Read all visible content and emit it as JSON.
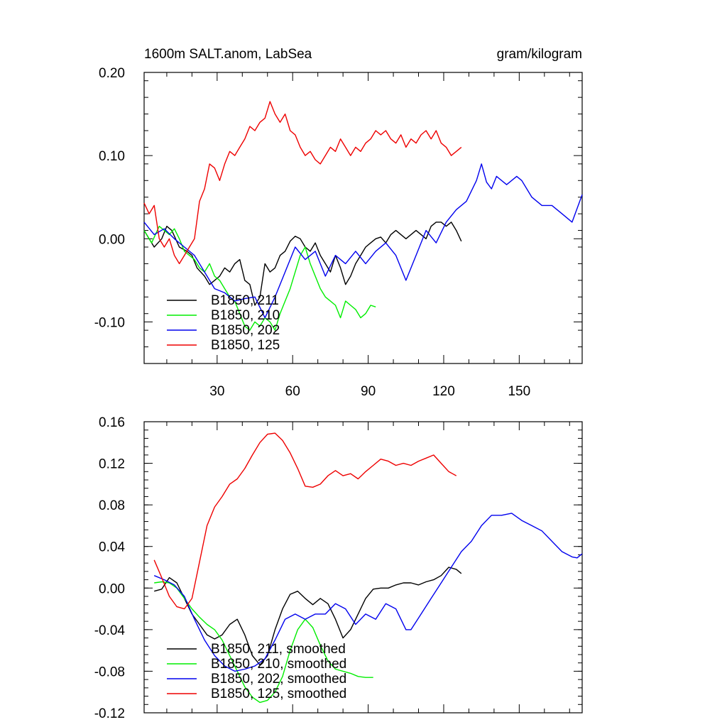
{
  "figure": {
    "title_left": "1600m SALT.anom, LabSea",
    "title_right": "gram/kilogram"
  },
  "chart_data": [
    {
      "type": "line",
      "title": "1600m SALT.anom, LabSea",
      "units": "gram/kilogram",
      "xlim": [
        1,
        175
      ],
      "ylim": [
        -0.15,
        0.2
      ],
      "xticks": [
        30,
        60,
        90,
        120,
        150
      ],
      "xtick_labels": [
        "30",
        "60",
        "90",
        "120",
        "150"
      ],
      "yticks": [
        -0.1,
        0.0,
        0.1,
        0.2
      ],
      "ytick_labels": [
        "-0.10",
        "0.00",
        "0.10",
        "0.20"
      ],
      "legend_position": "bottom-left",
      "series": [
        {
          "name": "B1850, 211",
          "color": "#000000",
          "x": [
            1,
            5,
            8,
            10,
            12,
            15,
            18,
            20,
            22,
            25,
            27,
            29,
            31,
            33,
            35,
            37,
            39,
            41,
            43,
            45,
            47,
            49,
            51,
            53,
            55,
            57,
            59,
            61,
            63,
            65,
            67,
            69,
            71,
            73,
            75,
            77,
            79,
            81,
            83,
            85,
            87,
            89,
            91,
            93,
            95,
            97,
            99,
            101,
            103,
            105,
            107,
            109,
            111,
            113,
            115,
            117,
            119,
            121,
            123,
            125,
            127
          ],
          "y": [
            0.01,
            -0.01,
            0.0,
            0.015,
            0.01,
            -0.01,
            -0.015,
            -0.02,
            -0.035,
            -0.045,
            -0.055,
            -0.05,
            -0.045,
            -0.035,
            -0.04,
            -0.03,
            -0.025,
            -0.05,
            -0.055,
            -0.08,
            -0.07,
            -0.03,
            -0.04,
            -0.035,
            -0.02,
            -0.015,
            -0.003,
            0.003,
            0.0,
            -0.01,
            -0.015,
            -0.005,
            -0.02,
            -0.03,
            -0.04,
            -0.02,
            -0.035,
            -0.055,
            -0.045,
            -0.03,
            -0.02,
            -0.01,
            -0.005,
            0.0,
            0.002,
            -0.005,
            0.005,
            0.01,
            0.005,
            0.0,
            0.005,
            0.01,
            0.005,
            0.0,
            0.015,
            0.02,
            0.02,
            0.015,
            0.02,
            0.01,
            -0.003
          ]
        },
        {
          "name": "B1850, 210",
          "color": "#00ee00",
          "x": [
            1,
            4,
            7,
            9,
            11,
            13,
            15,
            17,
            19,
            21,
            23,
            25,
            27,
            29,
            31,
            33,
            35,
            37,
            39,
            41,
            43,
            45,
            47,
            49,
            51,
            53,
            55,
            57,
            59,
            61,
            63,
            65,
            67,
            69,
            71,
            73,
            75,
            77,
            79,
            81,
            83,
            85,
            87,
            89,
            91,
            93
          ],
          "y": [
            0.01,
            -0.005,
            0.015,
            0.01,
            0.005,
            0.012,
            0.0,
            -0.015,
            -0.02,
            -0.025,
            -0.035,
            -0.04,
            -0.03,
            -0.045,
            -0.05,
            -0.06,
            -0.07,
            -0.075,
            -0.09,
            -0.105,
            -0.11,
            -0.1,
            -0.105,
            -0.095,
            -0.1,
            -0.11,
            -0.09,
            -0.075,
            -0.06,
            -0.04,
            -0.02,
            -0.01,
            -0.03,
            -0.045,
            -0.06,
            -0.07,
            -0.075,
            -0.08,
            -0.095,
            -0.075,
            -0.08,
            -0.085,
            -0.095,
            -0.09,
            -0.08,
            -0.082
          ]
        },
        {
          "name": "B1850, 202",
          "color": "#0000ee",
          "x": [
            1,
            5,
            9,
            13,
            17,
            21,
            25,
            29,
            33,
            37,
            41,
            45,
            49,
            53,
            57,
            61,
            65,
            69,
            73,
            77,
            81,
            85,
            89,
            93,
            97,
            101,
            105,
            109,
            113,
            117,
            121,
            125,
            129,
            133,
            135,
            137,
            139,
            141,
            145,
            149,
            151,
            155,
            159,
            163,
            167,
            171,
            175
          ],
          "y": [
            0.02,
            0.005,
            0.012,
            0.0,
            -0.01,
            -0.02,
            -0.04,
            -0.06,
            -0.065,
            -0.075,
            -0.072,
            -0.07,
            -0.095,
            -0.07,
            -0.04,
            -0.01,
            -0.025,
            -0.015,
            -0.045,
            -0.02,
            -0.03,
            -0.015,
            -0.03,
            -0.015,
            -0.005,
            -0.02,
            -0.05,
            -0.02,
            0.01,
            -0.005,
            0.02,
            0.035,
            0.045,
            0.07,
            0.09,
            0.068,
            0.06,
            0.075,
            0.065,
            0.075,
            0.07,
            0.05,
            0.04,
            0.04,
            0.03,
            0.02,
            0.053
          ]
        },
        {
          "name": "B1850, 125",
          "color": "#ee0000",
          "x": [
            1,
            3,
            5,
            7,
            9,
            11,
            13,
            15,
            17,
            19,
            21,
            23,
            25,
            27,
            29,
            31,
            33,
            35,
            37,
            39,
            41,
            43,
            45,
            47,
            49,
            51,
            53,
            55,
            57,
            59,
            61,
            63,
            65,
            67,
            69,
            71,
            73,
            75,
            77,
            79,
            81,
            83,
            85,
            87,
            89,
            91,
            93,
            95,
            97,
            99,
            101,
            103,
            105,
            107,
            109,
            111,
            113,
            115,
            117,
            119,
            121,
            123,
            125,
            127
          ],
          "y": [
            0.043,
            0.03,
            0.04,
            0.0,
            -0.01,
            0.0,
            -0.02,
            -0.03,
            -0.02,
            -0.01,
            0.0,
            0.045,
            0.06,
            0.09,
            0.085,
            0.07,
            0.09,
            0.105,
            0.1,
            0.11,
            0.12,
            0.135,
            0.13,
            0.14,
            0.145,
            0.165,
            0.15,
            0.14,
            0.15,
            0.13,
            0.125,
            0.11,
            0.1,
            0.105,
            0.095,
            0.09,
            0.1,
            0.11,
            0.105,
            0.12,
            0.11,
            0.1,
            0.11,
            0.105,
            0.115,
            0.12,
            0.13,
            0.125,
            0.13,
            0.12,
            0.115,
            0.125,
            0.11,
            0.12,
            0.115,
            0.125,
            0.13,
            0.12,
            0.13,
            0.115,
            0.11,
            0.1,
            0.105,
            0.11
          ]
        }
      ]
    },
    {
      "type": "line",
      "title": "",
      "xlim": [
        1,
        175
      ],
      "ylim": [
        -0.12,
        0.16
      ],
      "xticks": [
        30,
        60,
        90,
        120,
        150
      ],
      "xtick_labels": [
        "",
        "",
        "",
        "",
        ""
      ],
      "yticks": [
        -0.12,
        -0.08,
        -0.04,
        0.0,
        0.04,
        0.08,
        0.12,
        0.16
      ],
      "ytick_labels": [
        "-0.12",
        "-0.08",
        "-0.04",
        "0.00",
        "0.04",
        "0.08",
        "0.12",
        "0.16"
      ],
      "legend_position": "bottom-left",
      "series": [
        {
          "name": "B1850, 211, smoothed",
          "color": "#000000",
          "x": [
            5,
            8,
            11,
            14,
            17,
            20,
            23,
            26,
            29,
            32,
            35,
            38,
            41,
            44,
            47,
            50,
            53,
            56,
            59,
            62,
            65,
            68,
            71,
            74,
            77,
            80,
            83,
            86,
            89,
            92,
            95,
            98,
            101,
            104,
            107,
            110,
            113,
            116,
            119,
            122,
            125,
            127
          ],
          "y": [
            -0.003,
            -0.001,
            0.01,
            0.005,
            -0.01,
            -0.025,
            -0.035,
            -0.045,
            -0.049,
            -0.045,
            -0.035,
            -0.03,
            -0.045,
            -0.065,
            -0.074,
            -0.065,
            -0.04,
            -0.02,
            -0.006,
            -0.003,
            -0.01,
            -0.016,
            -0.01,
            -0.015,
            -0.03,
            -0.048,
            -0.04,
            -0.025,
            -0.01,
            -0.001,
            0.0,
            0.0,
            0.003,
            0.005,
            0.005,
            0.003,
            0.006,
            0.008,
            0.012,
            0.02,
            0.018,
            0.014
          ]
        },
        {
          "name": "B1850, 210, smoothed",
          "color": "#00ee00",
          "x": [
            5,
            8,
            11,
            14,
            17,
            20,
            23,
            26,
            29,
            32,
            35,
            38,
            41,
            44,
            47,
            50,
            53,
            56,
            59,
            62,
            65,
            68,
            71,
            74,
            77,
            80,
            83,
            86,
            89,
            92
          ],
          "y": [
            0.005,
            0.006,
            0.005,
            0.0,
            -0.01,
            -0.02,
            -0.028,
            -0.035,
            -0.04,
            -0.05,
            -0.065,
            -0.08,
            -0.095,
            -0.105,
            -0.11,
            -0.108,
            -0.1,
            -0.085,
            -0.06,
            -0.04,
            -0.03,
            -0.038,
            -0.055,
            -0.07,
            -0.078,
            -0.08,
            -0.082,
            -0.085,
            -0.086,
            -0.086
          ]
        },
        {
          "name": "B1850, 202, smoothed",
          "color": "#0000ee",
          "x": [
            5,
            9,
            13,
            17,
            21,
            25,
            29,
            33,
            37,
            41,
            45,
            49,
            53,
            57,
            61,
            65,
            69,
            73,
            77,
            81,
            85,
            89,
            93,
            97,
            101,
            105,
            107,
            111,
            115,
            119,
            123,
            127,
            131,
            135,
            139,
            143,
            147,
            151,
            155,
            159,
            163,
            167,
            171,
            173,
            175
          ],
          "y": [
            0.012,
            0.008,
            0.003,
            -0.008,
            -0.03,
            -0.05,
            -0.065,
            -0.075,
            -0.08,
            -0.078,
            -0.075,
            -0.068,
            -0.05,
            -0.03,
            -0.025,
            -0.03,
            -0.025,
            -0.025,
            -0.015,
            -0.02,
            -0.035,
            -0.025,
            -0.03,
            -0.015,
            -0.02,
            -0.04,
            -0.04,
            -0.025,
            -0.01,
            0.005,
            0.02,
            0.035,
            0.045,
            0.06,
            0.07,
            0.07,
            0.072,
            0.065,
            0.06,
            0.055,
            0.045,
            0.035,
            0.03,
            0.029,
            0.033
          ]
        },
        {
          "name": "B1850, 125, smoothed",
          "color": "#ee0000",
          "x": [
            5,
            8,
            11,
            14,
            17,
            20,
            23,
            26,
            29,
            32,
            35,
            38,
            41,
            44,
            47,
            50,
            53,
            56,
            59,
            62,
            65,
            68,
            71,
            74,
            77,
            80,
            83,
            86,
            89,
            92,
            95,
            98,
            101,
            104,
            107,
            110,
            113,
            116,
            119,
            122,
            125
          ],
          "y": [
            0.027,
            0.01,
            -0.008,
            -0.018,
            -0.02,
            -0.01,
            0.025,
            0.06,
            0.078,
            0.088,
            0.1,
            0.105,
            0.115,
            0.128,
            0.14,
            0.148,
            0.149,
            0.142,
            0.13,
            0.115,
            0.098,
            0.097,
            0.1,
            0.108,
            0.113,
            0.108,
            0.11,
            0.105,
            0.112,
            0.118,
            0.124,
            0.122,
            0.118,
            0.12,
            0.118,
            0.122,
            0.125,
            0.128,
            0.12,
            0.112,
            0.108
          ]
        }
      ]
    }
  ]
}
